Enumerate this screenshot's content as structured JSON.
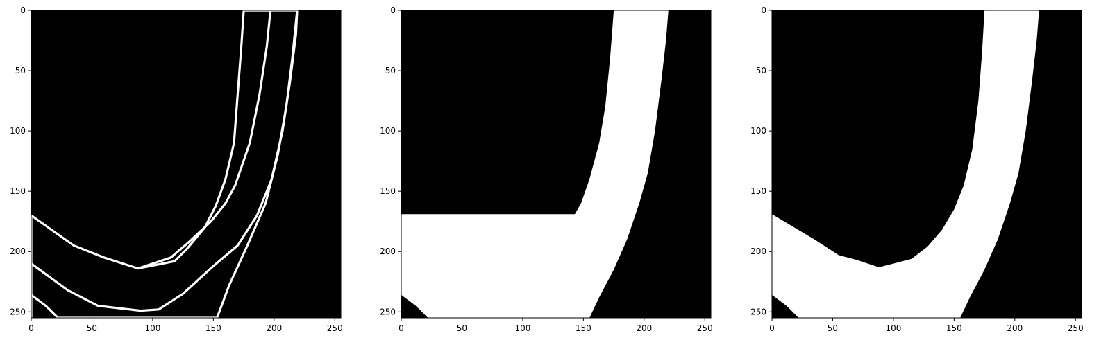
{
  "figure": {
    "background": "#ffffff",
    "mask_on_color": "#ffffff",
    "mask_off_color": "#000000",
    "axis_color": "#000000"
  },
  "chart_data": [
    {
      "type": "heatmap",
      "panel": "left",
      "description_kind": "binary mask outlines",
      "image_size": [
        256,
        256
      ],
      "x_ticks": [
        0,
        50,
        100,
        150,
        200,
        250
      ],
      "y_ticks": [
        0,
        50,
        100,
        150,
        200,
        250
      ],
      "xlim": [
        0,
        255
      ],
      "ylim": [
        255,
        0
      ],
      "grid": false,
      "outlines": [
        {
          "name": "",
          "points": [
            [
              175,
              0
            ],
            [
              219,
              0
            ],
            [
              218,
              20
            ],
            [
              213,
              60
            ],
            [
              207,
              100
            ],
            [
              198,
              140
            ],
            [
              186,
              170
            ],
            [
              170,
              195
            ],
            [
              150,
              212
            ],
            [
              125,
              235
            ],
            [
              105,
              248
            ],
            [
              90,
              249
            ],
            [
              55,
              245
            ],
            [
              30,
              232
            ],
            [
              0,
              210
            ]
          ]
        },
        {
          "name": "",
          "points": [
            [
              175,
              0
            ],
            [
              197,
              0
            ],
            [
              194,
              30
            ],
            [
              188,
              70
            ],
            [
              180,
              110
            ],
            [
              168,
              145
            ],
            [
              160,
              160
            ],
            [
              148,
              175
            ],
            [
              130,
              192
            ],
            [
              115,
              205
            ],
            [
              100,
              210
            ],
            [
              88,
              214
            ],
            [
              60,
              205
            ],
            [
              35,
              195
            ],
            [
              0,
              170
            ]
          ]
        },
        {
          "name": "",
          "points": [
            [
              219,
              0
            ],
            [
              215,
              40
            ],
            [
              210,
              80
            ],
            [
              203,
              120
            ],
            [
              193,
              160
            ],
            [
              178,
              195
            ],
            [
              163,
              228
            ],
            [
              153,
              255
            ]
          ]
        },
        {
          "name": "",
          "points": [
            [
              175,
              0
            ],
            [
              173,
              30
            ],
            [
              170,
              70
            ],
            [
              167,
              110
            ],
            [
              160,
              140
            ],
            [
              152,
              162
            ],
            [
              143,
              180
            ],
            [
              128,
              198
            ],
            [
              118,
              208
            ],
            [
              103,
              211
            ],
            [
              88,
              214
            ]
          ]
        },
        {
          "name": "",
          "points": [
            [
              0,
              170
            ],
            [
              0,
              255
            ]
          ]
        },
        {
          "name": "",
          "points": [
            [
              0,
              236
            ],
            [
              12,
              245
            ],
            [
              22,
              255
            ],
            [
              153,
              255
            ]
          ]
        }
      ]
    },
    {
      "type": "heatmap",
      "panel": "middle",
      "description_kind": "binary mask filled",
      "image_size": [
        256,
        256
      ],
      "x_ticks": [
        0,
        50,
        100,
        150,
        200,
        250
      ],
      "y_ticks": [
        0,
        50,
        100,
        150,
        200,
        250
      ],
      "xlim": [
        0,
        255
      ],
      "ylim": [
        255,
        0
      ],
      "grid": false,
      "filled_regions": [
        {
          "name": "",
          "points": [
            [
              175,
              0
            ],
            [
              220,
              0
            ],
            [
              218,
              25
            ],
            [
              214,
              60
            ],
            [
              209,
              100
            ],
            [
              203,
              135
            ],
            [
              196,
              160
            ],
            [
              186,
              190
            ],
            [
              175,
              215
            ],
            [
              163,
              238
            ],
            [
              155,
              255
            ],
            [
              22,
              255
            ],
            [
              12,
              245
            ],
            [
              0,
              236
            ],
            [
              0,
              169
            ],
            [
              143,
              169
            ],
            [
              148,
              160
            ],
            [
              155,
              140
            ],
            [
              163,
              110
            ],
            [
              168,
              80
            ],
            [
              172,
              40
            ],
            [
              175,
              0
            ]
          ]
        }
      ]
    },
    {
      "type": "heatmap",
      "panel": "right",
      "description_kind": "binary mask filled",
      "image_size": [
        256,
        256
      ],
      "x_ticks": [
        0,
        50,
        100,
        150,
        200,
        250
      ],
      "y_ticks": [
        0,
        50,
        100,
        150,
        200,
        250
      ],
      "xlim": [
        0,
        255
      ],
      "ylim": [
        255,
        0
      ],
      "grid": false,
      "filled_regions": [
        {
          "name": "",
          "points": [
            [
              175,
              0
            ],
            [
              220,
              0
            ],
            [
              218,
              25
            ],
            [
              214,
              60
            ],
            [
              209,
              100
            ],
            [
              203,
              135
            ],
            [
              196,
              160
            ],
            [
              186,
              190
            ],
            [
              175,
              215
            ],
            [
              163,
              238
            ],
            [
              155,
              255
            ],
            [
              22,
              255
            ],
            [
              12,
              245
            ],
            [
              0,
              236
            ],
            [
              0,
              169
            ],
            [
              15,
              178
            ],
            [
              35,
              190
            ],
            [
              55,
              203
            ],
            [
              70,
              207
            ],
            [
              88,
              213
            ],
            [
              100,
              210
            ],
            [
              115,
              206
            ],
            [
              128,
              196
            ],
            [
              140,
              182
            ],
            [
              150,
              165
            ],
            [
              158,
              145
            ],
            [
              165,
              115
            ],
            [
              170,
              75
            ],
            [
              173,
              35
            ],
            [
              175,
              0
            ]
          ]
        }
      ]
    }
  ]
}
